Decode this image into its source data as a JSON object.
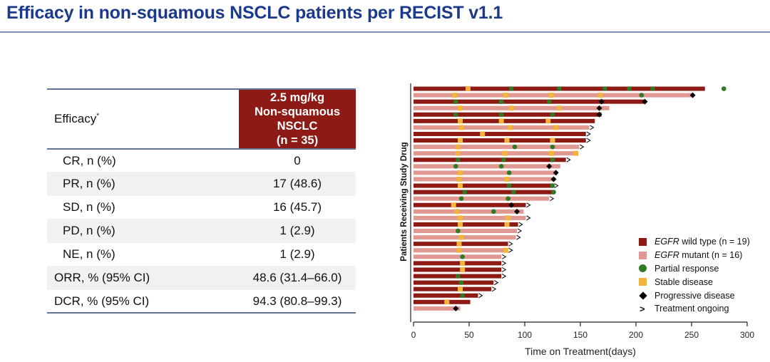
{
  "title": "Efficacy in non-squamous NSCLC patients per RECIST v1.1",
  "table": {
    "header_left": "Efficacy",
    "header_left_sup": "*",
    "header_right_lines": [
      "2.5 mg/kg",
      "Non-squamous",
      "NSCLC",
      "(n = 35)"
    ],
    "rows": [
      {
        "label": "CR, n (%)",
        "value": "0"
      },
      {
        "label": "PR, n (%)",
        "value": "17 (48.6)"
      },
      {
        "label": "SD, n (%)",
        "value": "16 (45.7)"
      },
      {
        "label": "PD, n (%)",
        "value": "1 (2.9)"
      },
      {
        "label": "NE, n (%)",
        "value": "1 (2.9)"
      },
      {
        "label": "ORR, % (95% CI)",
        "value": "48.6 (31.4–66.0)"
      },
      {
        "label": "DCR, % (95% CI)",
        "value": "94.3 (80.8–99.3)"
      }
    ]
  },
  "colors": {
    "title": "#1b3a8c",
    "header_fill": "#8d1a15",
    "wild_type": "#8d1a15",
    "mutant": "#e09893",
    "partial_response": "#2f7a23",
    "stable_disease": "#f2b43c",
    "progressive_disease": "#000000"
  },
  "chart_data": {
    "type": "swimmer",
    "xlabel": "Time on Treatment(days)",
    "ylabel": "Patients Receiving Study Drug",
    "xlim": [
      0,
      300
    ],
    "xticks": [
      0,
      50,
      100,
      150,
      200,
      250,
      300
    ],
    "legend_position": "bottom-right",
    "legend": [
      {
        "key": "wt",
        "label_italic": "EGFR",
        "label": " wild type (n = 19)"
      },
      {
        "key": "mut",
        "label_italic": "EGFR",
        "label": " mutant (n = 16)"
      },
      {
        "key": "pr",
        "label_italic": "",
        "label": "Partial response"
      },
      {
        "key": "sd",
        "label_italic": "",
        "label": "Stable disease"
      },
      {
        "key": "pd",
        "label_italic": "",
        "label": "Progressive disease"
      },
      {
        "key": "ongoing",
        "label_italic": "",
        "label": "Treatment ongoing"
      }
    ],
    "patients": [
      {
        "egfr": "wt",
        "duration": 262,
        "ongoing": false,
        "pr": [
          88,
          131,
          172,
          194,
          215,
          279
        ],
        "sd": [
          49
        ],
        "pd": []
      },
      {
        "egfr": "mut",
        "duration": 251,
        "ongoing": false,
        "pr": [
          205
        ],
        "sd": [
          37,
          83,
          124,
          168
        ],
        "pd": [
          251
        ]
      },
      {
        "egfr": "wt",
        "duration": 208,
        "ongoing": false,
        "pr": [
          38,
          79,
          122
        ],
        "sd": [],
        "pd": [
          169,
          208
        ]
      },
      {
        "egfr": "mut",
        "duration": 176,
        "ongoing": false,
        "pr": [],
        "sd": [
          42,
          88,
          131
        ],
        "pd": [
          167
        ]
      },
      {
        "egfr": "wt",
        "duration": 169,
        "ongoing": false,
        "pr": [
          38,
          79,
          125
        ],
        "sd": [],
        "pd": [
          167
        ]
      },
      {
        "egfr": "wt",
        "duration": 163,
        "ongoing": false,
        "pr": [],
        "sd": [
          42,
          79,
          121
        ],
        "pd": []
      },
      {
        "egfr": "mut",
        "duration": 158,
        "ongoing": true,
        "pr": [],
        "sd": [
          43,
          87,
          128
        ],
        "pd": []
      },
      {
        "egfr": "wt",
        "duration": 155,
        "ongoing": true,
        "pr": [],
        "sd": [
          62
        ],
        "pd": []
      },
      {
        "egfr": "wt",
        "duration": 155,
        "ongoing": true,
        "pr": [],
        "sd": [
          42,
          84,
          125
        ],
        "pd": []
      },
      {
        "egfr": "mut",
        "duration": 149,
        "ongoing": true,
        "pr": [
          91,
          125
        ],
        "sd": [
          40
        ],
        "pd": []
      },
      {
        "egfr": "mut",
        "duration": 147,
        "ongoing": false,
        "pr": [],
        "sd": [
          40,
          82,
          124,
          146
        ],
        "pd": []
      },
      {
        "egfr": "wt",
        "duration": 137,
        "ongoing": true,
        "pr": [
          40,
          81,
          125
        ],
        "sd": [],
        "pd": []
      },
      {
        "egfr": "mut",
        "duration": 132,
        "ongoing": false,
        "pr": [
          38,
          79
        ],
        "sd": [],
        "pd": [
          122
        ]
      },
      {
        "egfr": "mut",
        "duration": 128,
        "ongoing": false,
        "pr": [
          86
        ],
        "sd": [
          42
        ],
        "pd": [
          128
        ]
      },
      {
        "egfr": "mut",
        "duration": 126,
        "ongoing": false,
        "pr": [],
        "sd": [
          41,
          84
        ],
        "pd": [
          126
        ]
      },
      {
        "egfr": "wt",
        "duration": 126,
        "ongoing": true,
        "pr": [
          86,
          125
        ],
        "sd": [
          42
        ],
        "pd": []
      },
      {
        "egfr": "wt",
        "duration": 126,
        "ongoing": false,
        "pr": [
          46,
          90,
          126
        ],
        "sd": [],
        "pd": []
      },
      {
        "egfr": "mut",
        "duration": 122,
        "ongoing": true,
        "pr": [
          43,
          85
        ],
        "sd": [],
        "pd": []
      },
      {
        "egfr": "wt",
        "duration": 101,
        "ongoing": true,
        "pr": [],
        "sd": [
          36
        ],
        "pd": [
          88
        ]
      },
      {
        "egfr": "mut",
        "duration": 99,
        "ongoing": false,
        "pr": [
          72
        ],
        "sd": [
          39
        ],
        "pd": [
          93
        ]
      },
      {
        "egfr": "mut",
        "duration": 101,
        "ongoing": true,
        "pr": [],
        "sd": [
          42,
          85
        ],
        "pd": []
      },
      {
        "egfr": "wt",
        "duration": 94,
        "ongoing": true,
        "pr": [],
        "sd": [
          42,
          84
        ],
        "pd": []
      },
      {
        "egfr": "mut",
        "duration": 93,
        "ongoing": true,
        "pr": [
          40
        ],
        "sd": [],
        "pd": []
      },
      {
        "egfr": "mut",
        "duration": 92,
        "ongoing": true,
        "pr": [],
        "sd": [
          43
        ],
        "pd": []
      },
      {
        "egfr": "wt",
        "duration": 85,
        "ongoing": true,
        "pr": [],
        "sd": [
          41
        ],
        "pd": []
      },
      {
        "egfr": "mut",
        "duration": 85,
        "ongoing": true,
        "pr": [],
        "sd": [
          41,
          83
        ],
        "pd": []
      },
      {
        "egfr": "mut",
        "duration": 79,
        "ongoing": true,
        "pr": [
          44
        ],
        "sd": [],
        "pd": []
      },
      {
        "egfr": "wt",
        "duration": 79,
        "ongoing": true,
        "pr": [],
        "sd": [
          44
        ],
        "pd": []
      },
      {
        "egfr": "wt",
        "duration": 79,
        "ongoing": true,
        "pr": [],
        "sd": [
          44
        ],
        "pd": []
      },
      {
        "egfr": "wt",
        "duration": 79,
        "ongoing": true,
        "pr": [
          40
        ],
        "sd": [],
        "pd": []
      },
      {
        "egfr": "wt",
        "duration": 72,
        "ongoing": true,
        "pr": [
          43
        ],
        "sd": [],
        "pd": []
      },
      {
        "egfr": "wt",
        "duration": 70,
        "ongoing": true,
        "pr": [],
        "sd": [
          42
        ],
        "pd": []
      },
      {
        "egfr": "wt",
        "duration": 58,
        "ongoing": true,
        "pr": [
          44
        ],
        "sd": [],
        "pd": []
      },
      {
        "egfr": "wt",
        "duration": 51,
        "ongoing": false,
        "pr": [],
        "sd": [
          30
        ],
        "pd": []
      },
      {
        "egfr": "mut",
        "duration": 42,
        "ongoing": false,
        "pr": [],
        "sd": [],
        "pd": [
          38
        ]
      }
    ]
  }
}
